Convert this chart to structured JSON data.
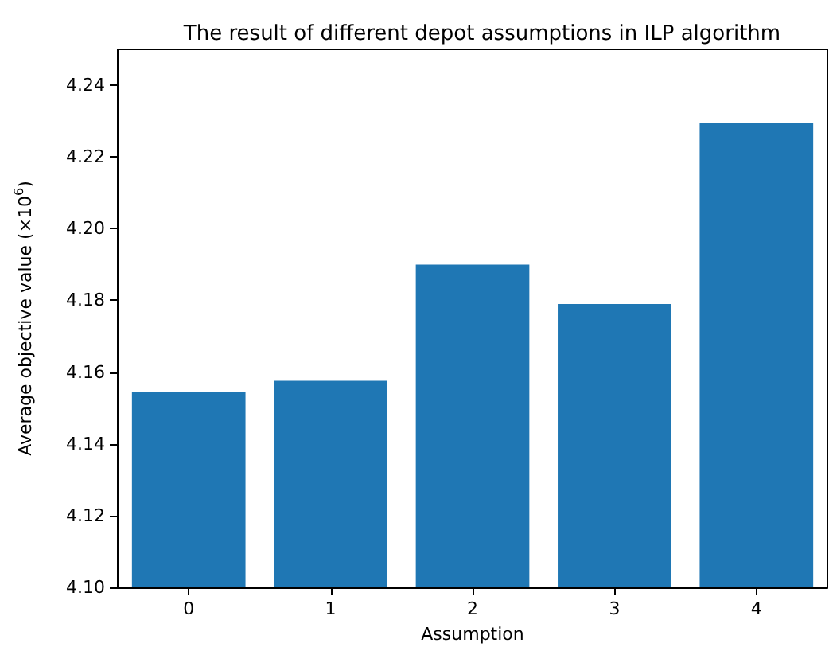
{
  "chart_data": {
    "type": "bar",
    "title": "The result of different depot assumptions in ILP algorithm",
    "xlabel": "Assumption",
    "ylabel": "Average objective value (×10$^{6}$)",
    "categories": [
      "0",
      "1",
      "2",
      "3",
      "4"
    ],
    "values": [
      4.1545,
      4.1576,
      4.19,
      4.179,
      4.2294
    ],
    "color": "#1f77b4",
    "ylim": [
      4.1,
      4.25
    ],
    "yticks": [
      {
        "value": 4.1,
        "label": "4.10"
      },
      {
        "value": 4.12,
        "label": "4.12"
      },
      {
        "value": 4.14,
        "label": "4.14"
      },
      {
        "value": 4.16,
        "label": "4.16"
      },
      {
        "value": 4.18,
        "label": "4.18"
      },
      {
        "value": 4.2,
        "label": "4.20"
      },
      {
        "value": 4.22,
        "label": "4.22"
      },
      {
        "value": 4.24,
        "label": "4.24"
      }
    ],
    "grid": false
  }
}
